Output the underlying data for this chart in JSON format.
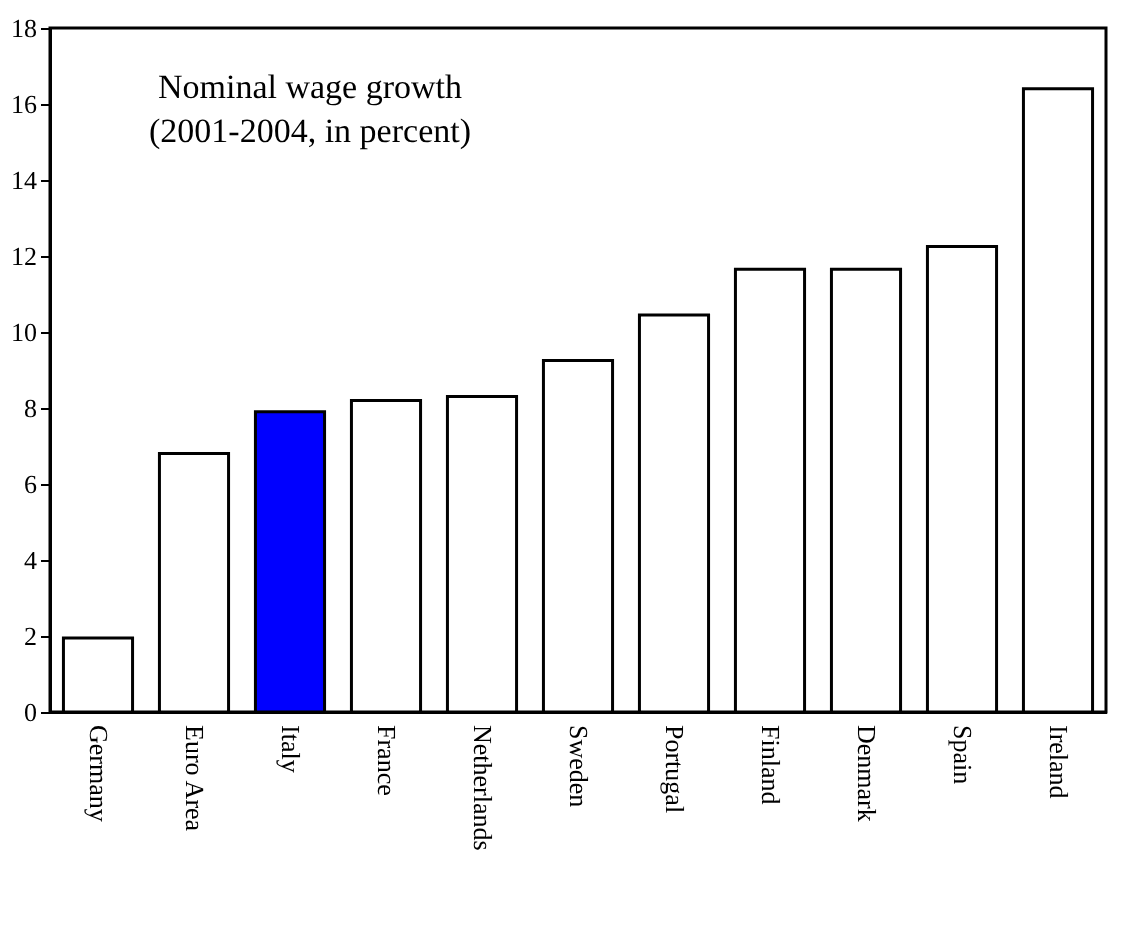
{
  "chart_data": {
    "type": "bar",
    "title": "Nominal wage growth\n(2001-2004, in percent)",
    "categories": [
      "Germany",
      "Euro Area",
      "Italy",
      "France",
      "Netherlands",
      "Sweden",
      "Portugal",
      "Finland",
      "Denmark",
      "Spain",
      "Ireland"
    ],
    "values": [
      1.95,
      6.8,
      7.9,
      8.2,
      8.3,
      9.25,
      10.45,
      11.65,
      11.65,
      12.25,
      16.4
    ],
    "colors": [
      "#ffffff",
      "#ffffff",
      "#0000ff",
      "#ffffff",
      "#ffffff",
      "#ffffff",
      "#ffffff",
      "#ffffff",
      "#ffffff",
      "#ffffff",
      "#ffffff"
    ],
    "ylim": [
      0,
      18
    ],
    "yticks": [
      0,
      2,
      4,
      6,
      8,
      10,
      12,
      14,
      16,
      18
    ],
    "grid": false
  }
}
